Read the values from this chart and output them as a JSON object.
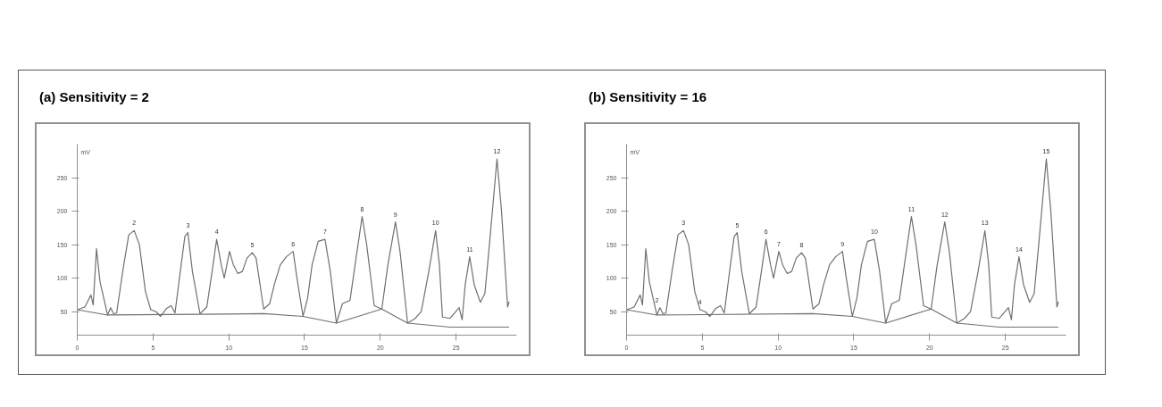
{
  "chart_data": [
    {
      "type": "line",
      "title": "(a) Sensitivity = 2",
      "ylabel": "mV",
      "xlim": [
        0,
        29
      ],
      "ylim": [
        15,
        300
      ],
      "xticks": [
        0,
        5,
        10,
        15,
        20,
        25
      ],
      "yticks": [
        50,
        100,
        150,
        200,
        250
      ],
      "grid": false,
      "series": [
        {
          "color": "#707070",
          "x": [
            0,
            0.5,
            0.9,
            1.05,
            1.27,
            1.5,
            2.0,
            2.2,
            2.4,
            2.6,
            3.0,
            3.4,
            3.76,
            4.1,
            4.5,
            4.85,
            5.2,
            5.5,
            5.9,
            6.2,
            6.45,
            6.8,
            7.1,
            7.3,
            7.6,
            8.1,
            8.55,
            8.9,
            9.2,
            9.5,
            9.7,
            10.05,
            10.3,
            10.6,
            10.9,
            11.2,
            11.55,
            11.8,
            12.0,
            12.3,
            12.7,
            13.0,
            13.4,
            13.8,
            14.25,
            14.5,
            14.9,
            15.2,
            15.5,
            15.9,
            16.35,
            16.7,
            17.1,
            17.5,
            18.0,
            18.4,
            18.8,
            19.1,
            19.6,
            20.1,
            20.5,
            21.0,
            21.3,
            21.8,
            22.3,
            22.7,
            23.2,
            23.65,
            23.9,
            24.1,
            24.6,
            25.2,
            25.4,
            25.6,
            25.9,
            26.2,
            26.6,
            26.9,
            27.2,
            27.7,
            28.0,
            28.4,
            28.5
          ],
          "values": [
            53,
            57,
            75,
            60,
            144,
            95,
            45,
            56,
            47,
            48,
            110,
            165,
            171,
            150,
            80,
            53,
            50,
            43,
            55,
            59,
            48,
            110,
            162,
            168,
            110,
            47,
            57,
            110,
            158,
            120,
            100,
            140,
            120,
            107,
            110,
            130,
            138,
            130,
            100,
            54,
            62,
            90,
            120,
            132,
            140,
            100,
            43,
            70,
            120,
            155,
            158,
            110,
            33,
            62,
            67,
            130,
            192,
            150,
            59,
            54,
            120,
            184,
            140,
            33,
            40,
            50,
            110,
            171,
            120,
            42,
            40,
            56,
            38,
            90,
            132,
            90,
            64,
            77,
            150,
            278,
            200,
            57,
            65
          ]
        },
        {
          "color": "#707070",
          "x": [
            0,
            2.0,
            12.3,
            14.9,
            17.1,
            20.1,
            21.8,
            24.6,
            28.5
          ],
          "values": [
            53,
            45,
            47,
            43,
            33,
            54,
            33,
            27,
            27
          ]
        }
      ],
      "annotations": [
        {
          "text": "2",
          "x": 3.76,
          "y": 171
        },
        {
          "text": "3",
          "x": 7.3,
          "y": 168
        },
        {
          "text": "4",
          "x": 9.2,
          "y": 158
        },
        {
          "text": "5",
          "x": 11.55,
          "y": 138
        },
        {
          "text": "6",
          "x": 14.25,
          "y": 140
        },
        {
          "text": "7",
          "x": 16.35,
          "y": 158
        },
        {
          "text": "8",
          "x": 18.8,
          "y": 192
        },
        {
          "text": "9",
          "x": 21.0,
          "y": 184
        },
        {
          "text": "10",
          "x": 23.65,
          "y": 171
        },
        {
          "text": "11",
          "x": 25.9,
          "y": 132
        },
        {
          "text": "12",
          "x": 27.7,
          "y": 278
        }
      ]
    },
    {
      "type": "line",
      "title": "(b) Sensitivity = 16",
      "ylabel": "mV",
      "xlim": [
        0,
        29
      ],
      "ylim": [
        15,
        300
      ],
      "xticks": [
        0,
        5,
        10,
        15,
        20,
        25
      ],
      "yticks": [
        50,
        100,
        150,
        200,
        250
      ],
      "grid": false,
      "series": [
        {
          "color": "#707070",
          "x": [
            0,
            0.5,
            0.9,
            1.05,
            1.27,
            1.5,
            2.0,
            2.2,
            2.4,
            2.6,
            3.0,
            3.4,
            3.76,
            4.1,
            4.5,
            4.85,
            5.2,
            5.5,
            5.9,
            6.2,
            6.45,
            6.8,
            7.1,
            7.3,
            7.6,
            8.1,
            8.55,
            8.9,
            9.2,
            9.5,
            9.7,
            10.05,
            10.3,
            10.6,
            10.9,
            11.2,
            11.55,
            11.8,
            12.0,
            12.3,
            12.7,
            13.0,
            13.4,
            13.8,
            14.25,
            14.5,
            14.9,
            15.2,
            15.5,
            15.9,
            16.35,
            16.7,
            17.1,
            17.5,
            18.0,
            18.4,
            18.8,
            19.1,
            19.6,
            20.1,
            20.5,
            21.0,
            21.3,
            21.8,
            22.3,
            22.7,
            23.2,
            23.65,
            23.9,
            24.1,
            24.6,
            25.2,
            25.4,
            25.6,
            25.9,
            26.2,
            26.6,
            26.9,
            27.2,
            27.7,
            28.0,
            28.4,
            28.5
          ],
          "values": [
            53,
            57,
            75,
            60,
            144,
            95,
            45,
            56,
            47,
            48,
            110,
            165,
            171,
            150,
            80,
            53,
            50,
            43,
            55,
            59,
            48,
            110,
            162,
            168,
            110,
            47,
            57,
            110,
            158,
            120,
            100,
            140,
            120,
            107,
            110,
            130,
            138,
            130,
            100,
            54,
            62,
            90,
            120,
            132,
            140,
            100,
            43,
            70,
            120,
            155,
            158,
            110,
            33,
            62,
            67,
            130,
            192,
            150,
            59,
            54,
            120,
            184,
            140,
            33,
            40,
            50,
            110,
            171,
            120,
            42,
            40,
            56,
            38,
            90,
            132,
            90,
            64,
            77,
            150,
            278,
            200,
            57,
            65
          ]
        },
        {
          "color": "#707070",
          "x": [
            0,
            2.0,
            12.3,
            14.9,
            17.1,
            20.1,
            21.8,
            24.6,
            28.5
          ],
          "values": [
            53,
            45,
            47,
            43,
            33,
            54,
            33,
            27,
            27
          ]
        }
      ],
      "annotations": [
        {
          "text": "2",
          "x": 2.0,
          "y": 56
        },
        {
          "text": "3",
          "x": 3.76,
          "y": 171
        },
        {
          "text": "4",
          "x": 4.85,
          "y": 53
        },
        {
          "text": "5",
          "x": 7.3,
          "y": 168
        },
        {
          "text": "6",
          "x": 9.2,
          "y": 158
        },
        {
          "text": "7",
          "x": 10.05,
          "y": 140
        },
        {
          "text": "8",
          "x": 11.55,
          "y": 138
        },
        {
          "text": "9",
          "x": 14.25,
          "y": 140
        },
        {
          "text": "10",
          "x": 16.35,
          "y": 158
        },
        {
          "text": "11",
          "x": 18.8,
          "y": 192
        },
        {
          "text": "12",
          "x": 21.0,
          "y": 184
        },
        {
          "text": "13",
          "x": 23.65,
          "y": 171
        },
        {
          "text": "14",
          "x": 25.9,
          "y": 132
        },
        {
          "text": "15",
          "x": 27.7,
          "y": 278
        }
      ]
    }
  ]
}
